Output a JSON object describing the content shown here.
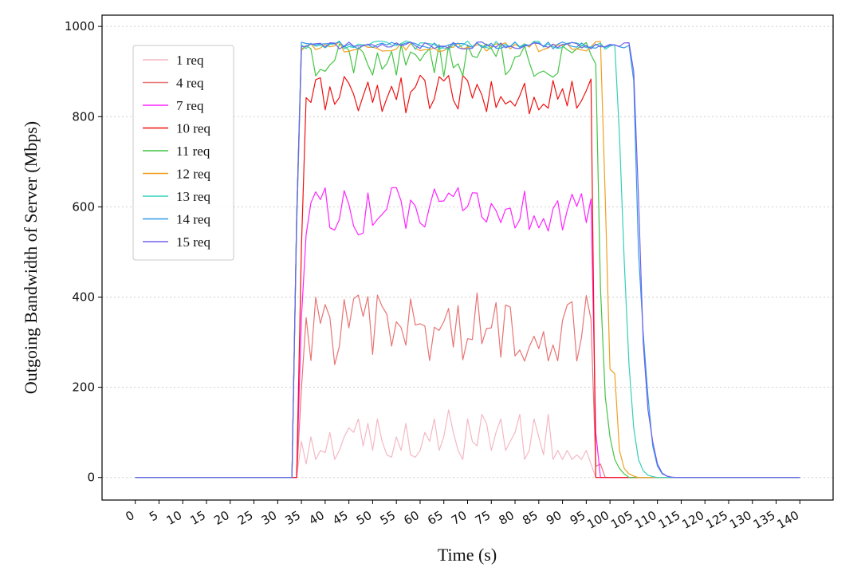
{
  "chart_data": {
    "type": "line",
    "xlabel": "Time (s)",
    "ylabel": "Outgoing Bandwidth of Server (Mbps)",
    "xlim": [
      -7,
      147
    ],
    "ylim": [
      -50,
      1025
    ],
    "xticks": [
      0,
      5,
      10,
      15,
      20,
      25,
      30,
      35,
      40,
      45,
      50,
      55,
      60,
      65,
      70,
      75,
      80,
      85,
      90,
      95,
      100,
      105,
      110,
      115,
      120,
      125,
      130,
      135,
      140
    ],
    "yticks": [
      0,
      200,
      400,
      600,
      800,
      1000
    ],
    "grid": "horizontal-dotted",
    "legend_position": "top-left",
    "series": [
      {
        "name": "1 req",
        "color": "#f4b8c4",
        "start": 35,
        "end": 96,
        "level": 0,
        "amp": 0,
        "fall": 0,
        "values": [
          80,
          30,
          90,
          40,
          60,
          55,
          100,
          40,
          60,
          90,
          110,
          100,
          130,
          70,
          120,
          60,
          130,
          80,
          50,
          45,
          90,
          60,
          120,
          50,
          45,
          60,
          100,
          80,
          130,
          60,
          90,
          150,
          100,
          60,
          40,
          130,
          80,
          70,
          140,
          120,
          60,
          100,
          130,
          60,
          80,
          100,
          140,
          40,
          60,
          130,
          90,
          50,
          140,
          40,
          60,
          40,
          60,
          40,
          50,
          40,
          60,
          30
        ]
      },
      {
        "name": "4 req",
        "color": "#e87474",
        "start": 35,
        "end": 96,
        "level": 330,
        "amp": 80,
        "fall": 3,
        "fall_values": [
          25,
          30,
          0
        ]
      },
      {
        "name": "7 req",
        "color": "#ff22ff",
        "start": 35,
        "end": 96,
        "level": 590,
        "amp": 55,
        "fall": 2,
        "fall_values": [
          100,
          0
        ]
      },
      {
        "name": "10 req",
        "color": "#ee1111",
        "start": 35,
        "end": 96,
        "level": 850,
        "amp": 45,
        "fall": 1,
        "fall_values": [
          0
        ]
      },
      {
        "name": "11 req",
        "color": "#44c444",
        "start": 34,
        "end": 97,
        "level": 925,
        "amp": 40,
        "fall": 7,
        "fall_values": [
          420,
          180,
          90,
          40,
          20,
          8,
          0
        ]
      },
      {
        "name": "12 req",
        "color": "#f0a020",
        "start": 34,
        "end": 98,
        "level": 955,
        "amp": 12,
        "fall": 8,
        "fall_values": [
          620,
          240,
          230,
          60,
          20,
          8,
          3,
          0
        ]
      },
      {
        "name": "13 req",
        "color": "#33d0b8",
        "start": 34,
        "end": 101,
        "level": 958,
        "amp": 10,
        "fall": 9,
        "fall_values": [
          760,
          480,
          250,
          110,
          40,
          15,
          5,
          2,
          0
        ]
      },
      {
        "name": "14 req",
        "color": "#2f9ae8",
        "start": 34,
        "end": 104,
        "level": 958,
        "amp": 8,
        "fall": 9,
        "fall_values": [
          880,
          500,
          320,
          180,
          70,
          25,
          8,
          3,
          0
        ]
      },
      {
        "name": "15 req",
        "color": "#7060e8",
        "start": 34,
        "end": 104,
        "level": 958,
        "amp": 8,
        "fall": 10,
        "fall_values": [
          900,
          620,
          300,
          150,
          80,
          30,
          10,
          3,
          1,
          0
        ]
      }
    ]
  }
}
